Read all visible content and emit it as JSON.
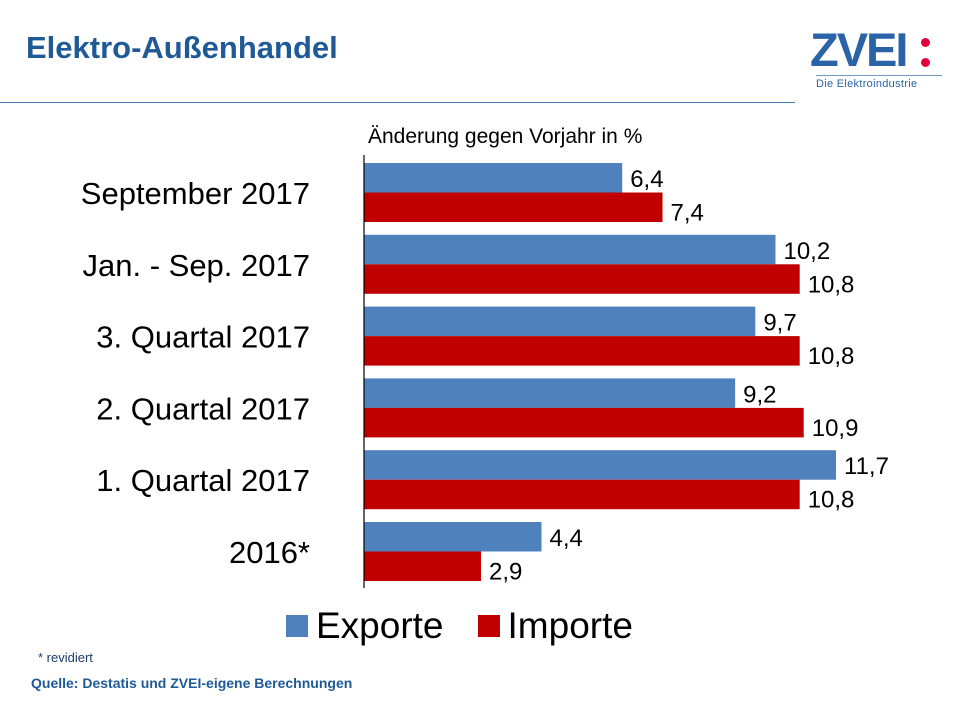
{
  "title": "Elektro-Außenhandel",
  "logo": {
    "text": "ZVEI",
    "subtitle": "Die Elektroindustrie"
  },
  "footnote": "* revidiert",
  "source": "Quelle: Destatis und ZVEI-eigene Berechnungen",
  "colors": {
    "exports": "#4f81bd",
    "imports": "#c00000",
    "title": "#1f5a96"
  },
  "chart_data": {
    "type": "bar",
    "orientation": "horizontal",
    "title": "",
    "subtitle": "Änderung gegen Vorjahr in %",
    "categories": [
      "September 2017",
      "Jan. - Sep. 2017",
      "3. Quartal 2017",
      "2. Quartal 2017",
      "1. Quartal 2017",
      "2016*"
    ],
    "series": [
      {
        "name": "Exporte",
        "values": [
          6.4,
          10.2,
          9.7,
          9.2,
          11.7,
          4.4
        ],
        "labels": [
          "6,4",
          "10,2",
          "9,7",
          "9,2",
          "11,7",
          "4,4"
        ]
      },
      {
        "name": "Importe",
        "values": [
          7.4,
          10.8,
          10.8,
          10.9,
          10.8,
          2.9
        ],
        "labels": [
          "7,4",
          "10,8",
          "10,8",
          "10,9",
          "10,8",
          "2,9"
        ]
      }
    ],
    "xlim": [
      0,
      12
    ],
    "grid": false,
    "legend": "bottom"
  }
}
